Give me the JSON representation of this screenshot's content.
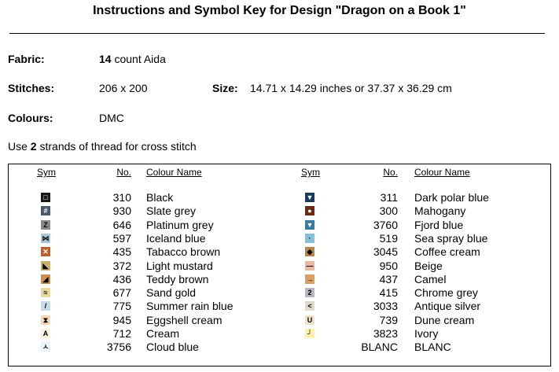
{
  "header": {
    "title": "Instructions and Symbol Key for Design \"Dragon on a Book 1\""
  },
  "fields": {
    "fabric": {
      "label": "Fabric:",
      "count": 14,
      "text": "count Aida"
    },
    "stitches": {
      "label": "Stitches:",
      "value": "206 x 200"
    },
    "size": {
      "label": "Size:",
      "value": "14.71 x 14.29 inches or 37.37 x 36.29 cm"
    },
    "colours": {
      "label": "Colours:",
      "value": "DMC"
    }
  },
  "note": {
    "prefix": "Use",
    "strands": 2,
    "suffix": "strands of thread for cross stitch"
  },
  "table": {
    "headers": [
      "Sym",
      "No.",
      "Colour Name"
    ],
    "columns": [
      {
        "rows": [
          {
            "sym": "□",
            "swatch": "#1a1a1a",
            "no": 310,
            "name": "Black"
          },
          {
            "sym": "#",
            "swatch": "#4a5a6a",
            "no": 930,
            "name": "Slate grey"
          },
          {
            "sym": "Z",
            "swatch": "#8a8a8a",
            "no": 646,
            "name": "Platinum grey"
          },
          {
            "sym": "⋈",
            "swatch": "#a8c8d8",
            "no": 597,
            "name": "Iceland blue"
          },
          {
            "sym": "✕",
            "swatch": "#b8602a",
            "no": 435,
            "name": "Tabacco brown"
          },
          {
            "sym": "◣",
            "swatch": "#c8b070",
            "no": 372,
            "name": "Light mustard"
          },
          {
            "sym": "◢",
            "swatch": "#c89050",
            "no": 436,
            "name": "Teddy brown"
          },
          {
            "sym": "≈",
            "swatch": "#e8d8a0",
            "no": 677,
            "name": "Sand gold"
          },
          {
            "sym": "/",
            "swatch": "#c8dce8",
            "no": 775,
            "name": "Summer rain blue"
          },
          {
            "sym": "⧗",
            "swatch": "#f8d8b8",
            "no": 945,
            "name": "Eggshell cream"
          },
          {
            "sym": "A",
            "swatch": "#f8f4e0",
            "no": 712,
            "name": "Cream"
          },
          {
            "sym": "ㅅ",
            "swatch": "#e8f4f8",
            "no": 3756,
            "name": "Cloud blue"
          }
        ]
      },
      {
        "rows": [
          {
            "sym": "▼",
            "swatch": "#1c3a5a",
            "no": 311,
            "name": "Dark polar blue"
          },
          {
            "sym": "●",
            "swatch": "#6a2a18",
            "no": 300,
            "name": "Mahogany"
          },
          {
            "sym": "▼",
            "swatch": "#3a7aa0",
            "no": 3760,
            "name": "Fjord blue"
          },
          {
            "sym": "·",
            "swatch": "#88c0d8",
            "no": 519,
            "name": "Sea spray blue"
          },
          {
            "sym": "◆",
            "swatch": "#b08850",
            "no": 3045,
            "name": "Coffee cream"
          },
          {
            "sym": "—",
            "swatch": "#e8b8a0",
            "no": 950,
            "name": "Beige"
          },
          {
            "sym": "→",
            "swatch": "#d8a068",
            "no": 437,
            "name": "Camel"
          },
          {
            "sym": "2",
            "swatch": "#b8b8c0",
            "no": 415,
            "name": "Chrome grey"
          },
          {
            "sym": "<",
            "swatch": "#e0d8c8",
            "no": 3033,
            "name": "Antique silver"
          },
          {
            "sym": "U",
            "swatch": "#f0e4c8",
            "no": 739,
            "name": "Dune cream"
          },
          {
            "sym": "┘",
            "swatch": "#fff0b0",
            "no": 3823,
            "name": "Ivory"
          },
          {
            "swatch": "#ffffff",
            "no": "BLANC",
            "name": "BLANC"
          }
        ]
      }
    ]
  }
}
